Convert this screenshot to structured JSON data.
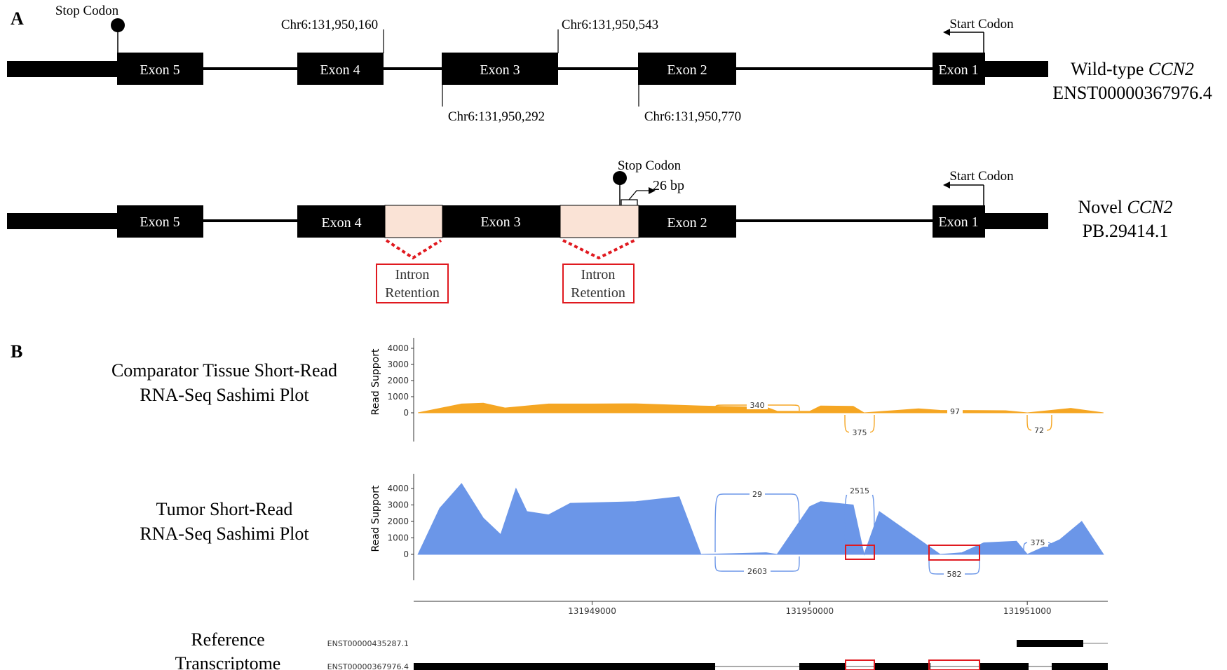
{
  "panel_a": {
    "label": "A",
    "wildtype": {
      "exons": [
        "Exon 5",
        "Exon 4",
        "Exon 3",
        "Exon 2",
        "Exon 1"
      ],
      "stop_codon": "Stop Codon",
      "start_codon": "Start Codon",
      "coords": [
        "Chr6:131,950,160",
        "Chr6:131,950,543",
        "Chr6:131,950,292",
        "Chr6:131,950,770"
      ],
      "name_prefix": "Wild-type ",
      "gene": "CCN2",
      "transcript_id": "ENST00000367976.4"
    },
    "novel": {
      "exons": [
        "Exon 5",
        "Exon 4",
        "Exon 3",
        "Exon 2",
        "Exon 1"
      ],
      "stop_codon": "Stop Codon",
      "shift_label": "26 bp",
      "start_codon": "Start Codon",
      "name_prefix": "Novel ",
      "gene": "CCN2",
      "transcript_id": "PB.29414.1",
      "intron_retention": [
        {
          "line1": "Intron",
          "line2": "Retention"
        },
        {
          "line1": "Intron",
          "line2": "Retention"
        }
      ]
    }
  },
  "panel_b": {
    "label": "B",
    "tracks": [
      {
        "title_line1": "Comparator Tissue Short-Read",
        "title_line2": "RNA-Seq Sashimi Plot"
      },
      {
        "title_line1": "Tumor Short-Read",
        "title_line2": "RNA-Seq Sashimi Plot"
      }
    ],
    "reference": {
      "title_line1": "Reference",
      "title_line2": "Transcriptome",
      "transcripts": [
        "ENST00000435287.1",
        "ENST00000367976.4"
      ]
    },
    "colors": {
      "comparator": "#f5a623",
      "tumor": "#6b96e8",
      "highlight": "#e0191f",
      "retention_fill": "#fae3d6"
    }
  },
  "chart_data": [
    {
      "type": "area",
      "title": "Comparator Tissue Short-Read RNA-Seq Sashimi Plot",
      "ylabel": "Read Support",
      "ylim": [
        0,
        4000
      ],
      "yticks": [
        0,
        1000,
        2000,
        3000,
        4000
      ],
      "xlim": [
        131948180,
        131951370
      ],
      "xticks": [
        131949000,
        131950000,
        131951000
      ],
      "coverage": {
        "x": [
          131948200,
          131948400,
          131948500,
          131948600,
          131948800,
          131949000,
          131949200,
          131949500,
          131949800,
          131949850,
          131950000,
          131950050,
          131950200,
          131950250,
          131950500,
          131950600,
          131950900,
          131951000,
          131951200,
          131951350
        ],
        "y": [
          0,
          550,
          600,
          300,
          550,
          550,
          560,
          420,
          350,
          100,
          90,
          420,
          400,
          0,
          250,
          150,
          130,
          0,
          280,
          0
        ]
      },
      "junctions": [
        {
          "label": "340",
          "side": "above"
        },
        {
          "label": "375",
          "side": "below"
        },
        {
          "label": "97",
          "side": "above"
        },
        {
          "label": "72",
          "side": "below"
        }
      ]
    },
    {
      "type": "area",
      "title": "Tumor Short-Read RNA-Seq Sashimi Plot",
      "ylabel": "Read Support",
      "ylim": [
        0,
        4000
      ],
      "yticks": [
        0,
        1000,
        2000,
        3000,
        4000
      ],
      "xlim": [
        131948180,
        131951370
      ],
      "xticks": [
        131949000,
        131950000,
        131951000
      ],
      "coverage": {
        "x": [
          131948200,
          131948300,
          131948400,
          131948500,
          131948580,
          131948650,
          131948700,
          131948800,
          131948900,
          131949200,
          131949400,
          131949500,
          131949800,
          131949850,
          131950000,
          131950050,
          131950200,
          131950250,
          131950320,
          131950600,
          131950700,
          131950800,
          131950950,
          131951000,
          131951150,
          131951250,
          131951350
        ],
        "y": [
          0,
          2800,
          4300,
          2200,
          1200,
          4000,
          2600,
          2400,
          3100,
          3200,
          3500,
          0,
          100,
          0,
          2900,
          3200,
          3000,
          0,
          2600,
          0,
          100,
          700,
          800,
          0,
          900,
          2000,
          0
        ]
      },
      "junctions": [
        {
          "label": "29",
          "side": "above"
        },
        {
          "label": "2515",
          "side": "above"
        },
        {
          "label": "375",
          "side": "above"
        },
        {
          "label": "2603",
          "side": "below"
        },
        {
          "label": "582",
          "side": "below"
        }
      ]
    }
  ]
}
